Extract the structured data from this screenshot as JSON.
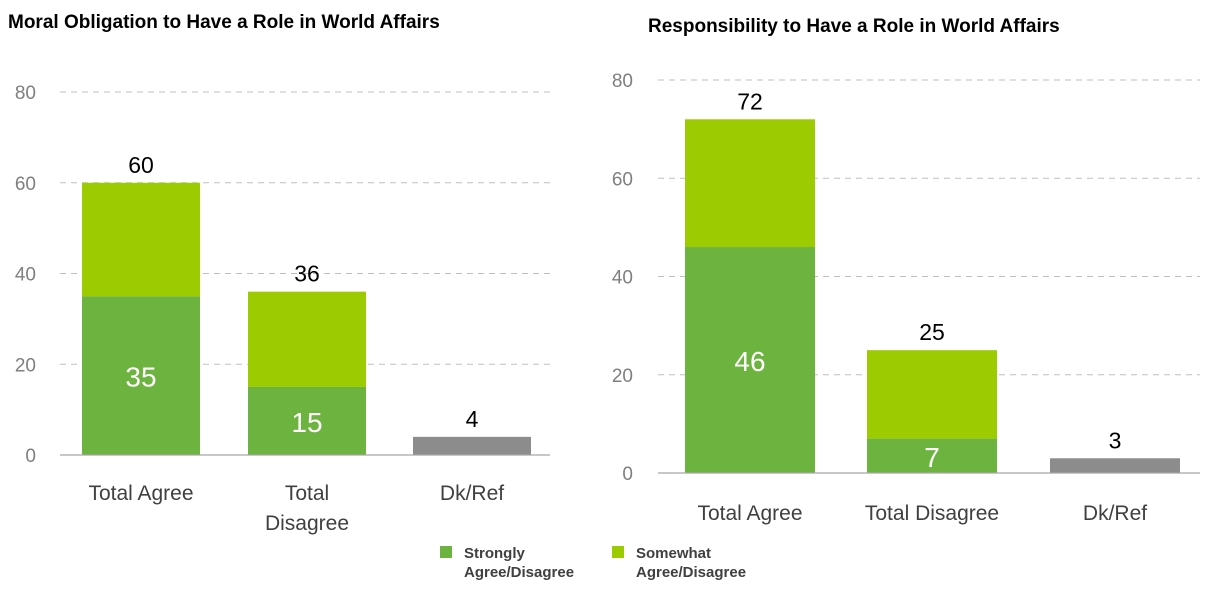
{
  "colors": {
    "strongly": "#6db33f",
    "somewhat": "#9bcb00",
    "dkref": "#8c8c8c"
  },
  "legend": {
    "items": [
      {
        "key": "strongly",
        "lines": [
          "Strongly",
          "Agree/Disagree"
        ]
      },
      {
        "key": "somewhat",
        "lines": [
          "Somewhat",
          "Agree/Disagree"
        ]
      }
    ]
  },
  "chart_data": [
    {
      "type": "bar",
      "stacked": true,
      "title": "Moral Obligation to Have a Role in World Affairs",
      "categories": [
        [
          "Total Agree"
        ],
        [
          "Total",
          "Disagree"
        ],
        [
          "Dk/Ref"
        ]
      ],
      "ylim": [
        0,
        80
      ],
      "yticks": [
        0,
        20,
        40,
        60,
        80
      ],
      "grid": true,
      "bars": [
        {
          "segments": [
            {
              "key": "strongly",
              "value": 35
            },
            {
              "key": "somewhat",
              "value": 25
            }
          ],
          "total": 60
        },
        {
          "segments": [
            {
              "key": "strongly",
              "value": 15
            },
            {
              "key": "somewhat",
              "value": 21
            }
          ],
          "total": 36
        },
        {
          "segments": [
            {
              "key": "dkref",
              "value": 4
            }
          ],
          "total": 4
        }
      ]
    },
    {
      "type": "bar",
      "stacked": true,
      "title": "Responsibility to Have a Role in World Affairs",
      "categories": [
        [
          "Total Agree"
        ],
        [
          "Total Disagree"
        ],
        [
          "Dk/Ref"
        ]
      ],
      "ylim": [
        0,
        80
      ],
      "yticks": [
        0,
        20,
        40,
        60,
        80
      ],
      "grid": true,
      "bars": [
        {
          "segments": [
            {
              "key": "strongly",
              "value": 46
            },
            {
              "key": "somewhat",
              "value": 26
            }
          ],
          "total": 72
        },
        {
          "segments": [
            {
              "key": "strongly",
              "value": 7
            },
            {
              "key": "somewhat",
              "value": 18
            }
          ],
          "total": 25
        },
        {
          "segments": [
            {
              "key": "dkref",
              "value": 3
            }
          ],
          "total": 3
        }
      ]
    }
  ]
}
